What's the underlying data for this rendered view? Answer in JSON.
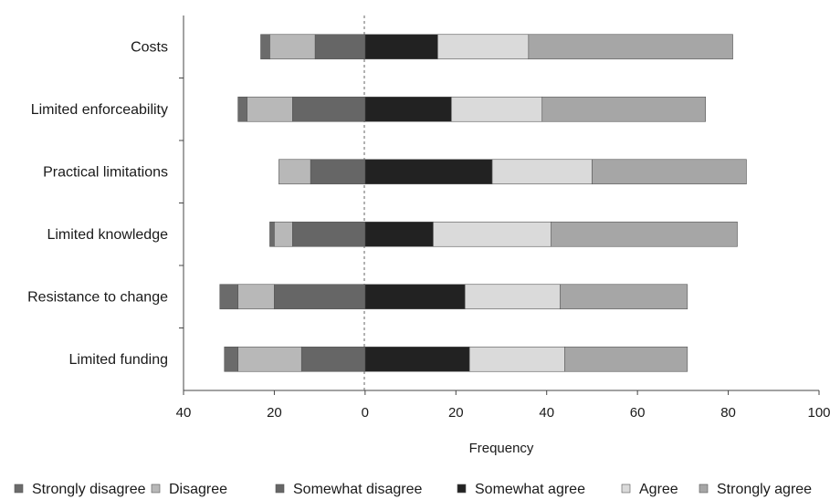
{
  "chart_data": {
    "type": "bar",
    "orientation": "horizontal",
    "stacking": "diverging",
    "categories": [
      "Costs",
      "Limited enforceability",
      "Practical limitations",
      "Limited knowledge",
      "Resistance to change",
      "Limited funding"
    ],
    "series": [
      {
        "name": "Strongly disagree",
        "side": "negative",
        "color": "#6b6b6b",
        "values": [
          2,
          2,
          0,
          1,
          4,
          3
        ]
      },
      {
        "name": "Disagree",
        "side": "negative",
        "color": "#b8b8b8",
        "values": [
          10,
          10,
          7,
          4,
          8,
          14
        ]
      },
      {
        "name": "Somewhat disagree",
        "side": "negative",
        "color": "#666666",
        "values": [
          11,
          16,
          12,
          16,
          20,
          14
        ]
      },
      {
        "name": "Somewhat agree",
        "side": "positive",
        "color": "#222222",
        "values": [
          16,
          19,
          28,
          15,
          22,
          23
        ]
      },
      {
        "name": "Agree",
        "side": "positive",
        "color": "#dadada",
        "values": [
          20,
          20,
          22,
          26,
          21,
          21
        ]
      },
      {
        "name": "Strongly agree",
        "side": "positive",
        "color": "#a6a6a6",
        "values": [
          45,
          36,
          34,
          41,
          28,
          27
        ]
      }
    ],
    "xlabel": "Frequency",
    "xlim": [
      -40,
      100
    ],
    "xticks": [
      -40,
      -20,
      0,
      20,
      40,
      60,
      80,
      100
    ],
    "xtick_labels": [
      "40",
      "20",
      "0",
      "20",
      "40",
      "60",
      "80",
      "100"
    ],
    "zero_line": "dashed",
    "grid": false,
    "legend_position": "bottom"
  }
}
